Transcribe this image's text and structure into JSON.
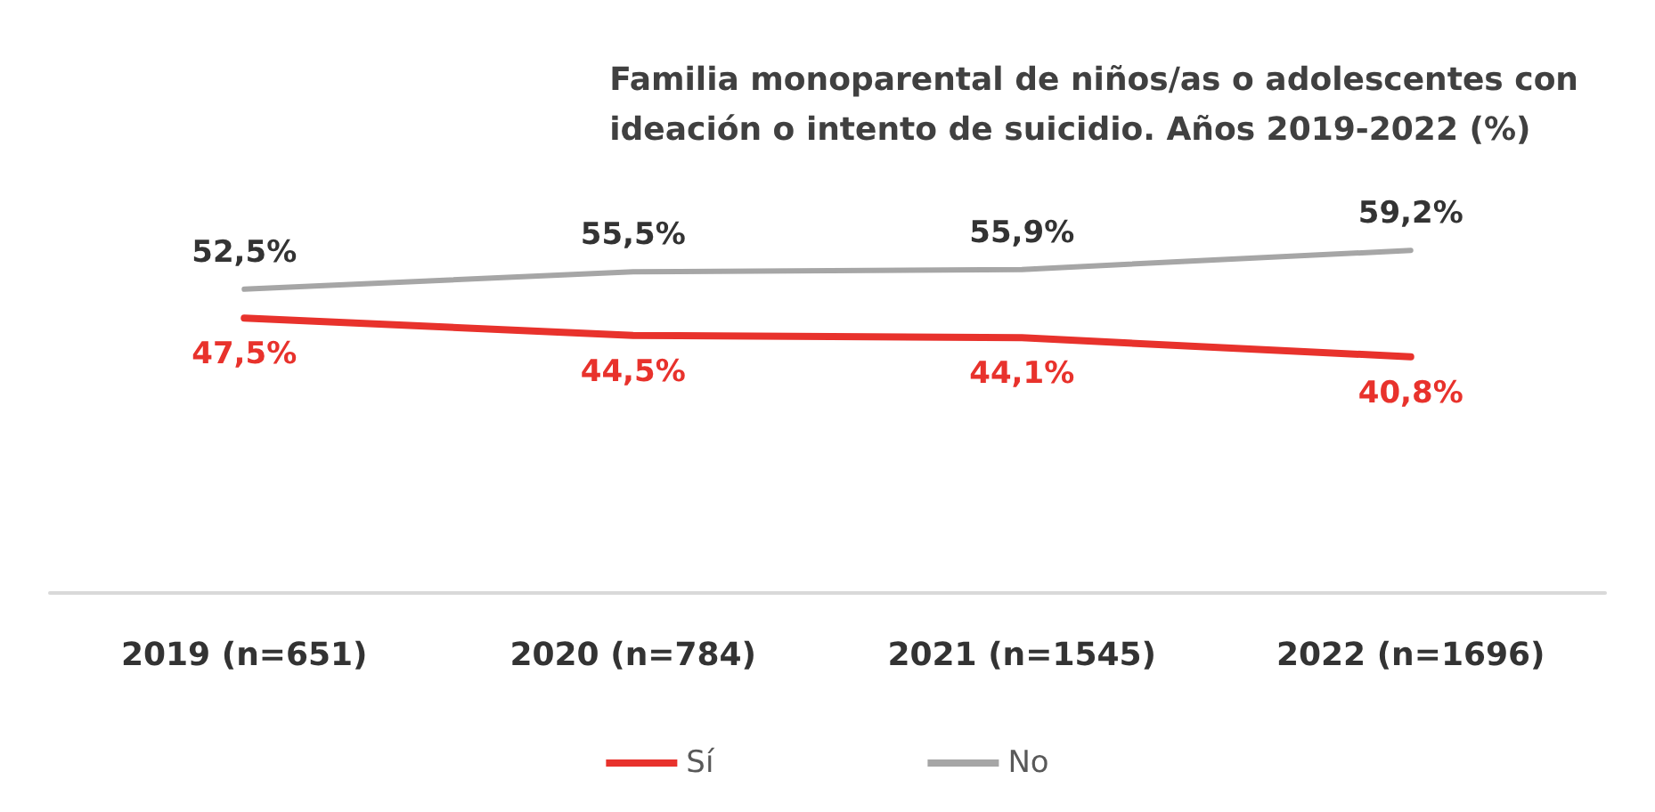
{
  "chart_data": {
    "type": "line",
    "title": "Familia monoparental de niños/as o adolescentes con\nideación o intento de suicidio. Años 2019-2022 (%)",
    "categories": [
      "2019 (n=651)",
      "2020 (n=784)",
      "2021 (n=1545)",
      "2022 (n=1696)"
    ],
    "series": [
      {
        "name": "Sí",
        "color": "#e8322c",
        "values": [
          47.5,
          44.5,
          44.1,
          40.8
        ],
        "value_labels": [
          "47,5%",
          "44,5%",
          "44,1%",
          "40,8%"
        ]
      },
      {
        "name": "No",
        "color": "#a6a6a6",
        "values": [
          52.5,
          55.5,
          55.9,
          59.2
        ],
        "value_labels": [
          "52,5%",
          "55,5%",
          "55,9%",
          "59,2%"
        ]
      }
    ],
    "legend": "bottom",
    "grid": false,
    "marker": "none",
    "line_style": "solid"
  }
}
